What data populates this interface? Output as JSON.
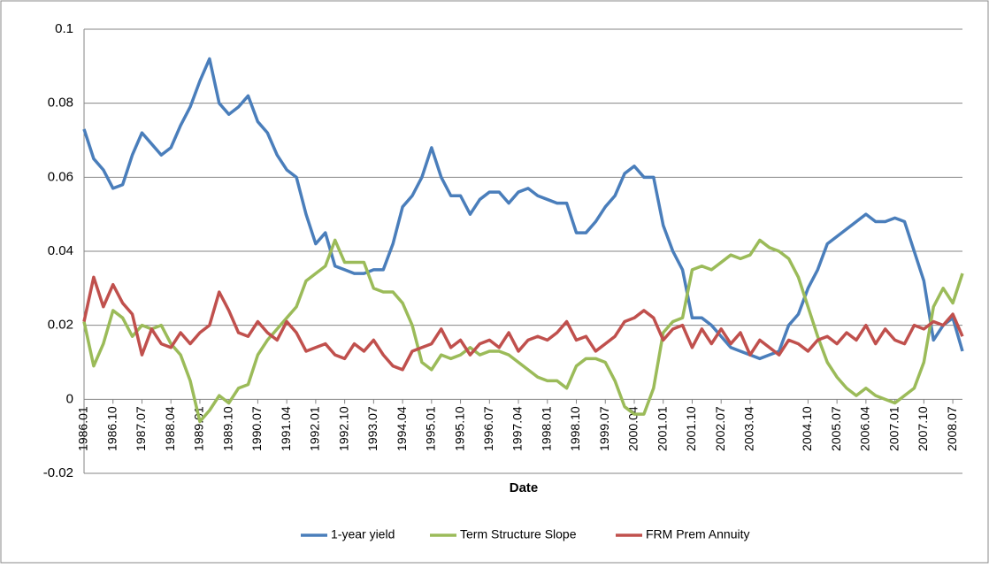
{
  "chart_data": {
    "type": "line",
    "x_label": "Date",
    "categories": [
      "1986.01",
      null,
      null,
      "1986.10",
      null,
      null,
      "1987.07",
      null,
      null,
      "1988.04",
      null,
      null,
      "1989.01",
      null,
      null,
      "1989.10",
      null,
      null,
      "1990.07",
      null,
      null,
      "1991.04",
      null,
      null,
      "1992.01",
      null,
      null,
      "1992.10",
      null,
      null,
      "1993.07",
      null,
      null,
      "1994.04",
      null,
      null,
      "1995.01",
      null,
      null,
      "1995.10",
      null,
      null,
      "1996.07",
      null,
      null,
      "1997.04",
      null,
      null,
      "1998.01",
      null,
      null,
      "1998.10",
      null,
      null,
      "1999.07",
      null,
      null,
      "2000.04",
      null,
      null,
      "2001.01",
      null,
      null,
      "2001.10",
      null,
      null,
      "2002.07",
      null,
      null,
      "2003.04",
      null,
      null,
      null,
      null,
      null,
      "2004.10",
      null,
      null,
      "2005.07",
      null,
      null,
      "2006.04",
      null,
      null,
      "2007.01",
      null,
      null,
      "2007.10",
      null,
      null,
      "2008.07",
      null
    ],
    "series": [
      {
        "name": "1-year yield",
        "color": "#4a7ebb",
        "values": [
          0.073,
          0.065,
          0.062,
          0.057,
          0.058,
          0.066,
          0.072,
          0.069,
          0.066,
          0.068,
          0.074,
          0.079,
          0.086,
          0.092,
          0.08,
          0.077,
          0.079,
          0.082,
          0.075,
          0.072,
          0.066,
          0.062,
          0.06,
          0.05,
          0.042,
          0.045,
          0.036,
          0.035,
          0.034,
          0.034,
          0.035,
          0.035,
          0.042,
          0.052,
          0.055,
          0.06,
          0.068,
          0.06,
          0.055,
          0.055,
          0.05,
          0.054,
          0.056,
          0.056,
          0.053,
          0.056,
          0.057,
          0.055,
          0.054,
          0.053,
          0.053,
          0.045,
          0.045,
          0.048,
          0.052,
          0.055,
          0.061,
          0.063,
          0.06,
          0.06,
          0.047,
          0.04,
          0.035,
          0.022,
          0.022,
          0.02,
          0.017,
          0.014,
          0.013,
          0.012,
          0.011,
          0.012,
          0.013,
          0.02,
          0.023,
          0.03,
          0.035,
          0.042,
          0.044,
          0.046,
          0.048,
          0.05,
          0.048,
          0.048,
          0.049,
          0.048,
          0.04,
          0.032,
          0.016,
          0.02,
          0.022,
          0.013
        ]
      },
      {
        "name": "Term Structure Slope",
        "color": "#9bbb59",
        "values": [
          0.021,
          0.009,
          0.015,
          0.024,
          0.022,
          0.017,
          0.02,
          0.019,
          0.02,
          0.015,
          0.012,
          0.005,
          -0.006,
          -0.003,
          0.001,
          -0.001,
          0.003,
          0.004,
          0.012,
          0.016,
          0.019,
          0.022,
          0.025,
          0.032,
          0.034,
          0.036,
          0.043,
          0.037,
          0.037,
          0.037,
          0.03,
          0.029,
          0.029,
          0.026,
          0.02,
          0.01,
          0.008,
          0.012,
          0.011,
          0.012,
          0.014,
          0.012,
          0.013,
          0.013,
          0.012,
          0.01,
          0.008,
          0.006,
          0.005,
          0.005,
          0.003,
          0.009,
          0.011,
          0.011,
          0.01,
          0.005,
          -0.002,
          -0.004,
          -0.004,
          0.003,
          0.018,
          0.021,
          0.022,
          0.035,
          0.036,
          0.035,
          0.037,
          0.039,
          0.038,
          0.039,
          0.043,
          0.041,
          0.04,
          0.038,
          0.033,
          0.025,
          0.017,
          0.01,
          0.006,
          0.003,
          0.001,
          0.003,
          0.001,
          0.0,
          -0.001,
          0.001,
          0.003,
          0.01,
          0.025,
          0.03,
          0.026,
          0.034
        ]
      },
      {
        "name": "FRM Prem Annuity",
        "color": "#c0504d",
        "values": [
          0.021,
          0.033,
          0.025,
          0.031,
          0.026,
          0.023,
          0.012,
          0.019,
          0.015,
          0.014,
          0.018,
          0.015,
          0.018,
          0.02,
          0.029,
          0.024,
          0.018,
          0.017,
          0.021,
          0.018,
          0.016,
          0.021,
          0.018,
          0.013,
          0.014,
          0.015,
          0.012,
          0.011,
          0.015,
          0.013,
          0.016,
          0.012,
          0.009,
          0.008,
          0.013,
          0.014,
          0.015,
          0.019,
          0.014,
          0.016,
          0.012,
          0.015,
          0.016,
          0.014,
          0.018,
          0.013,
          0.016,
          0.017,
          0.016,
          0.018,
          0.021,
          0.016,
          0.017,
          0.013,
          0.015,
          0.017,
          0.021,
          0.022,
          0.024,
          0.022,
          0.016,
          0.019,
          0.02,
          0.014,
          0.019,
          0.015,
          0.019,
          0.015,
          0.018,
          0.012,
          0.016,
          0.014,
          0.012,
          0.016,
          0.015,
          0.013,
          0.016,
          0.017,
          0.015,
          0.018,
          0.016,
          0.02,
          0.015,
          0.019,
          0.016,
          0.015,
          0.02,
          0.019,
          0.021,
          0.02,
          0.023,
          0.017
        ]
      }
    ],
    "ylim": [
      -0.02,
      0.1
    ],
    "yticks": [
      -0.02,
      0,
      0.02,
      0.04,
      0.06,
      0.08,
      0.1
    ],
    "grid": true,
    "legend": "bottom"
  }
}
